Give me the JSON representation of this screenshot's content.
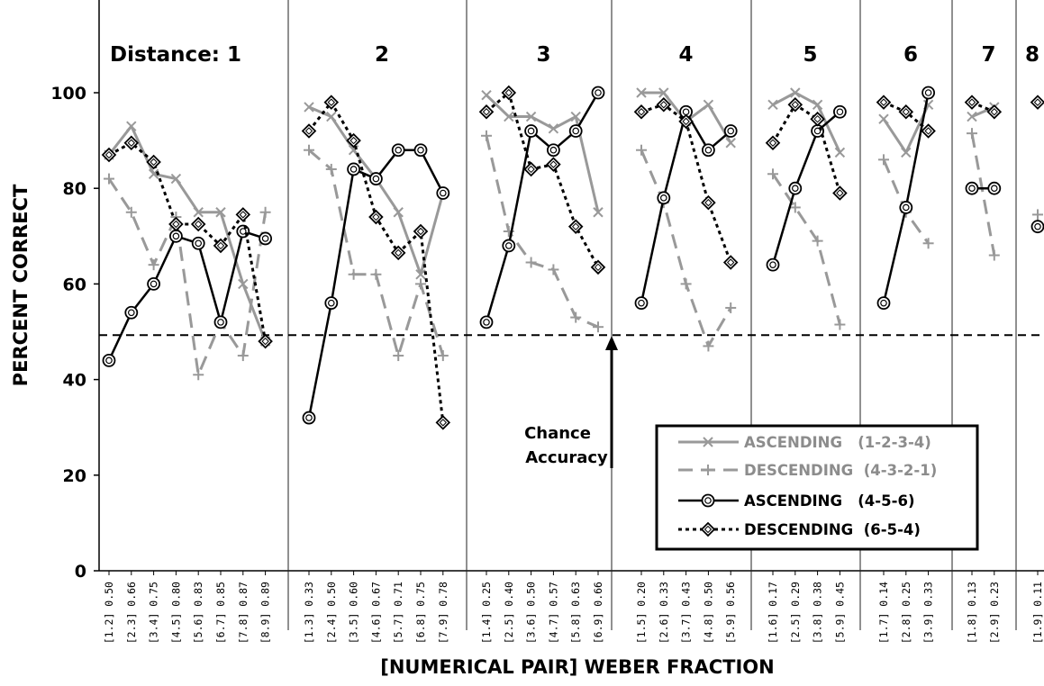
{
  "chart_data": {
    "type": "line",
    "xlabel": "[NUMERICAL PAIR] WEBER FRACTION",
    "ylabel": "PERCENT CORRECT",
    "ylim": [
      0,
      118
    ],
    "yticks": [
      0,
      20,
      40,
      60,
      80,
      100
    ],
    "chance_level": 49.3,
    "annotation": [
      "Chance",
      "Accuracy"
    ],
    "legend_position": "bottom-right",
    "legend": [
      {
        "label": "ASCENDING   (1-2-3-4)",
        "series": "asc1234"
      },
      {
        "label": "DESCENDING  (4-3-2-1)",
        "series": "desc4321"
      },
      {
        "label": "ASCENDING   (4-5-6)",
        "series": "asc456"
      },
      {
        "label": "DESCENDING  (6-5-4)",
        "series": "desc654"
      }
    ],
    "series_styles": {
      "asc1234": {
        "color": "#999999",
        "dash": "none",
        "marker": "x",
        "width": 3
      },
      "desc4321": {
        "color": "#999999",
        "dash": "16,9",
        "marker": "plus",
        "width": 3
      },
      "asc456": {
        "color": "#000000",
        "dash": "none",
        "marker": "circle",
        "width": 2.5
      },
      "desc654": {
        "color": "#000000",
        "dash": "4,4",
        "marker": "diamond",
        "width": 3
      }
    },
    "panels": [
      {
        "label": "Distance:  1",
        "categories": [
          "[1.2] 0.50",
          "[2.3] 0.66",
          "[3.4] 0.75",
          "[4.5] 0.80",
          "[5.6] 0.83",
          "[6.7] 0.85",
          "[7.8] 0.87",
          "[8.9] 0.89"
        ],
        "series": {
          "asc1234": [
            87,
            93,
            83,
            82,
            75,
            75,
            60,
            48
          ],
          "desc4321": [
            82,
            75,
            64,
            74,
            41,
            52,
            45,
            75
          ],
          "asc456": [
            44,
            54,
            60,
            70,
            68.5,
            52,
            71,
            69.5
          ],
          "desc654": [
            87,
            89.5,
            85.5,
            72.5,
            72.5,
            68,
            74.5,
            48
          ]
        }
      },
      {
        "label": "2",
        "categories": [
          "[1.3] 0.33",
          "[2.4] 0.50",
          "[3.5] 0.60",
          "[4.6] 0.67",
          "[5.7] 0.71",
          "[6.8] 0.75",
          "[7.9] 0.78"
        ],
        "series": {
          "asc1234": [
            97,
            95,
            88,
            82,
            75,
            62,
            79
          ],
          "desc4321": [
            88,
            84,
            62,
            62,
            45,
            60,
            45
          ],
          "asc456": [
            32,
            56,
            84,
            82,
            88,
            88,
            79
          ],
          "desc654": [
            92,
            98,
            90,
            74,
            66.5,
            71,
            31
          ]
        }
      },
      {
        "label": "3",
        "categories": [
          "[1.4] 0.25",
          "[2.5] 0.40",
          "[3.6] 0.50",
          "[4.7] 0.57",
          "[5.8] 0.63",
          "[6.9] 0.66"
        ],
        "series": {
          "asc1234": [
            99.5,
            95,
            95,
            92.5,
            95,
            75
          ],
          "desc4321": [
            91,
            71,
            64.5,
            63,
            53,
            51
          ],
          "asc456": [
            52,
            68,
            92,
            88,
            92,
            100
          ],
          "desc654": [
            96,
            100,
            84,
            85,
            72,
            63.5
          ]
        }
      },
      {
        "label": "4",
        "categories": [
          "[1.5] 0.20",
          "[2.6] 0.33",
          "[3.7] 0.43",
          "[4.8] 0.50",
          "[5.9] 0.56"
        ],
        "series": {
          "asc1234": [
            100,
            100,
            94,
            97.5,
            89.5
          ],
          "desc4321": [
            88,
            77,
            60,
            47,
            55
          ],
          "asc456": [
            56,
            78,
            96,
            88,
            92
          ],
          "desc654": [
            96,
            97.5,
            94,
            77,
            64.5
          ]
        }
      },
      {
        "label": "5",
        "categories": [
          "[1.6] 0.17",
          "[2.5] 0.29",
          "[3.8] 0.38",
          "[5.9] 0.45"
        ],
        "series": {
          "asc1234": [
            97.5,
            100,
            97.5,
            87.5
          ],
          "desc4321": [
            83,
            76,
            69,
            51.5
          ],
          "asc456": [
            64,
            80,
            92,
            96
          ],
          "desc654": [
            89.5,
            97.5,
            94.5,
            79
          ]
        }
      },
      {
        "label": "6",
        "categories": [
          "[1.7] 0.14",
          "[2.8] 0.25",
          "[3.9] 0.33"
        ],
        "series": {
          "asc1234": [
            94.5,
            87.5,
            97.5
          ],
          "desc4321": [
            86,
            75,
            68.5
          ],
          "asc456": [
            56,
            76,
            100
          ],
          "desc654": [
            98,
            96,
            92
          ]
        }
      },
      {
        "label": "7",
        "categories": [
          "[1.8] 0.13",
          "[2.9] 0.23"
        ],
        "series": {
          "asc1234": [
            95,
            97
          ],
          "desc4321": [
            91.5,
            66
          ],
          "asc456": [
            80,
            80
          ],
          "desc654": [
            98,
            96
          ]
        }
      },
      {
        "label": "8",
        "categories": [
          "[1.9] 0.11"
        ],
        "series": {
          "asc1234": [],
          "desc4321": [
            74.5
          ],
          "asc456": [
            72
          ],
          "desc654": [
            98
          ]
        }
      }
    ]
  }
}
